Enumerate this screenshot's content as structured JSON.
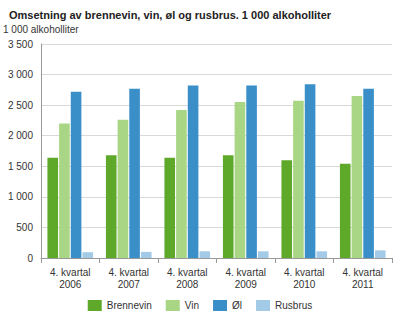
{
  "chart_data": {
    "type": "bar",
    "title": "Omsetning av brennevin, vin, øl og rusbrus. 1 000 alkoholliter",
    "y_label": "1 000 alkoholliter",
    "categories": [
      "4. kvartal 2006",
      "4. kvartal 2007",
      "4. kvartal 2008",
      "4. kvartal 2009",
      "4. kvartal 2010",
      "4. kvartal 2011"
    ],
    "series": [
      {
        "name": "Brennevin",
        "color": "#5ea82a",
        "values": [
          1640,
          1680,
          1640,
          1680,
          1600,
          1540
        ]
      },
      {
        "name": "Vin",
        "color": "#a9d684",
        "values": [
          2200,
          2260,
          2420,
          2550,
          2570,
          2650
        ]
      },
      {
        "name": "Øl",
        "color": "#3b8fc9",
        "values": [
          2720,
          2770,
          2820,
          2820,
          2840,
          2770
        ]
      },
      {
        "name": "Rusbrus",
        "color": "#a3cbe8",
        "values": [
          95,
          100,
          110,
          110,
          110,
          125
        ]
      }
    ],
    "ylim": [
      0,
      3500
    ],
    "yticks": [
      0,
      500,
      {
        "value": 1000,
        "label": "1 000"
      },
      {
        "value": 1500,
        "label": "1 500"
      },
      {
        "value": 2000,
        "label": "2 000"
      },
      {
        "value": 2500,
        "label": "2 500"
      },
      {
        "value": 3000,
        "label": "3 000"
      },
      {
        "value": 3500,
        "label": "3 500"
      }
    ],
    "grid": true,
    "legend": "bottom"
  }
}
